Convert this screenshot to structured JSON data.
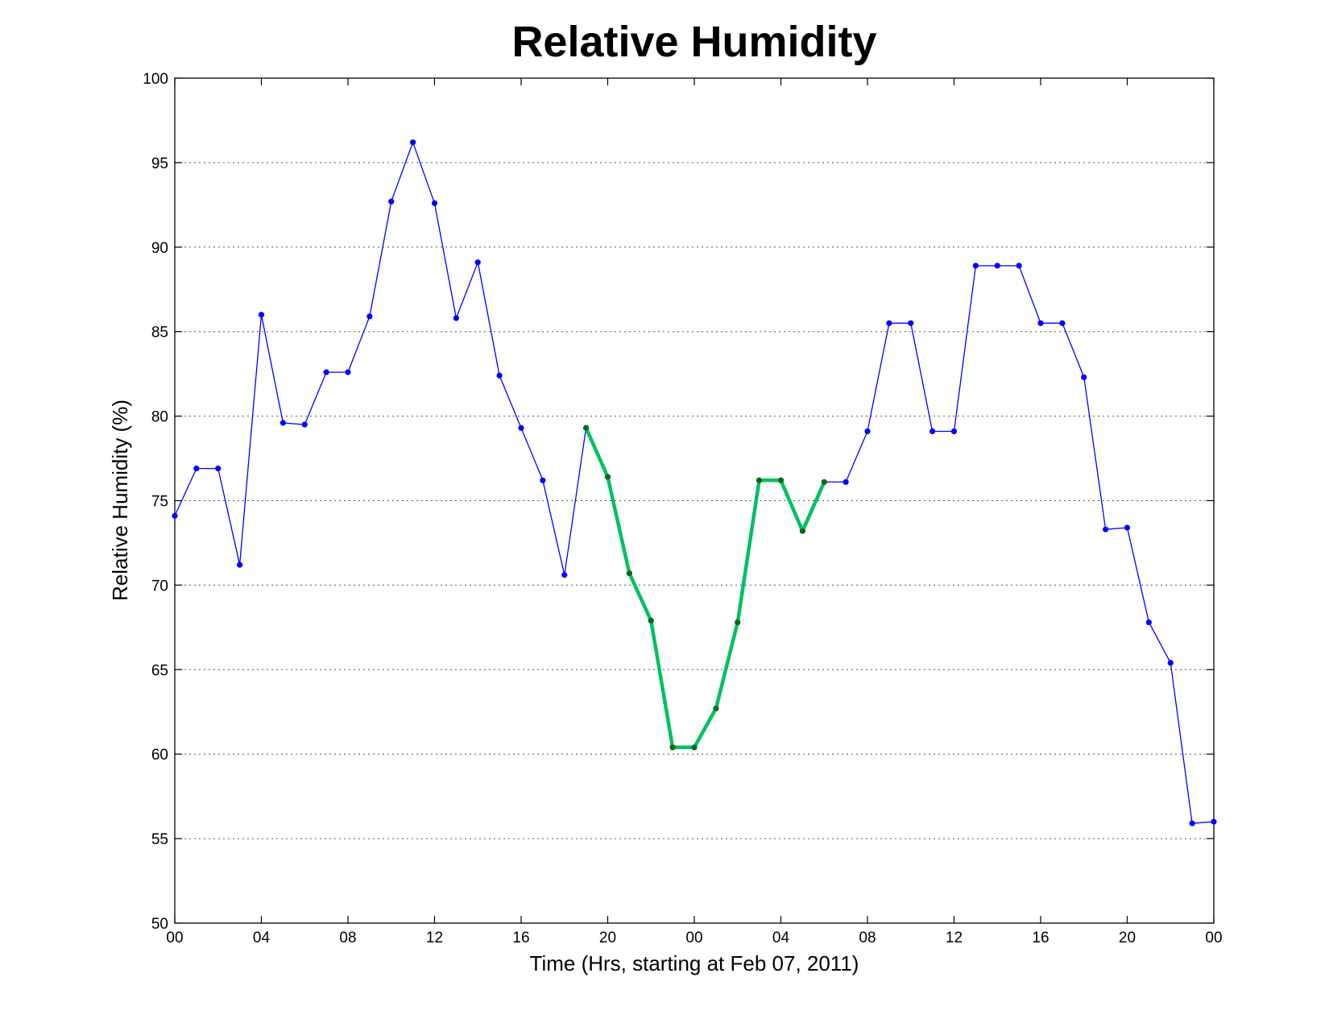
{
  "chart_data": {
    "type": "line",
    "title": "Relative Humidity",
    "xlabel": "Time (Hrs, starting at Feb 07, 2011)",
    "ylabel": "Relative Humidity (%)",
    "xlim": [
      0,
      48
    ],
    "ylim": [
      50,
      100
    ],
    "xticks": [
      0,
      4,
      8,
      12,
      16,
      20,
      24,
      28,
      32,
      36,
      40,
      44,
      48
    ],
    "xtick_labels": [
      "00",
      "04",
      "08",
      "12",
      "16",
      "20",
      "00",
      "04",
      "08",
      "12",
      "16",
      "20",
      "00"
    ],
    "yticks": [
      50,
      55,
      60,
      65,
      70,
      75,
      80,
      85,
      90,
      95,
      100
    ],
    "ytick_labels": [
      "50",
      "55",
      "60",
      "65",
      "70",
      "75",
      "80",
      "85",
      "90",
      "95",
      "100"
    ],
    "grid": "horizontal dotted",
    "series": [
      {
        "color": "#0000ff",
        "marker_color": "#0000ff",
        "x": [
          0,
          1,
          2,
          3,
          4,
          5,
          6,
          7,
          8,
          9,
          10,
          11,
          12,
          13,
          14,
          15,
          16,
          17,
          18,
          19,
          20,
          21,
          22,
          23,
          24,
          25,
          26,
          27,
          28,
          29,
          30,
          31,
          32,
          33,
          34,
          35,
          36,
          37,
          38,
          39,
          40,
          41,
          42,
          43,
          44,
          45,
          46,
          47,
          48
        ],
        "y": [
          74.1,
          76.9,
          76.9,
          71.2,
          86.0,
          79.6,
          79.5,
          82.6,
          82.6,
          85.9,
          92.7,
          96.2,
          92.6,
          85.8,
          89.1,
          82.4,
          79.3,
          76.2,
          70.6,
          79.3,
          76.4,
          70.7,
          67.9,
          60.4,
          60.4,
          62.7,
          67.8,
          76.2,
          76.2,
          73.2,
          76.1,
          76.1,
          79.1,
          85.5,
          85.5,
          79.1,
          79.1,
          88.9,
          88.9,
          88.9,
          85.5,
          85.5,
          82.3,
          73.3,
          73.4,
          67.8,
          65.4,
          55.9,
          56.0
        ]
      },
      {
        "color": "#00c060",
        "marker_color": "#0a6a0a",
        "x": [
          19,
          20,
          21,
          22,
          23,
          24,
          25,
          26,
          27,
          28,
          29,
          30
        ],
        "y": [
          79.3,
          76.4,
          70.7,
          67.9,
          60.4,
          60.4,
          62.7,
          67.8,
          76.2,
          76.2,
          73.2,
          76.1
        ]
      }
    ]
  }
}
